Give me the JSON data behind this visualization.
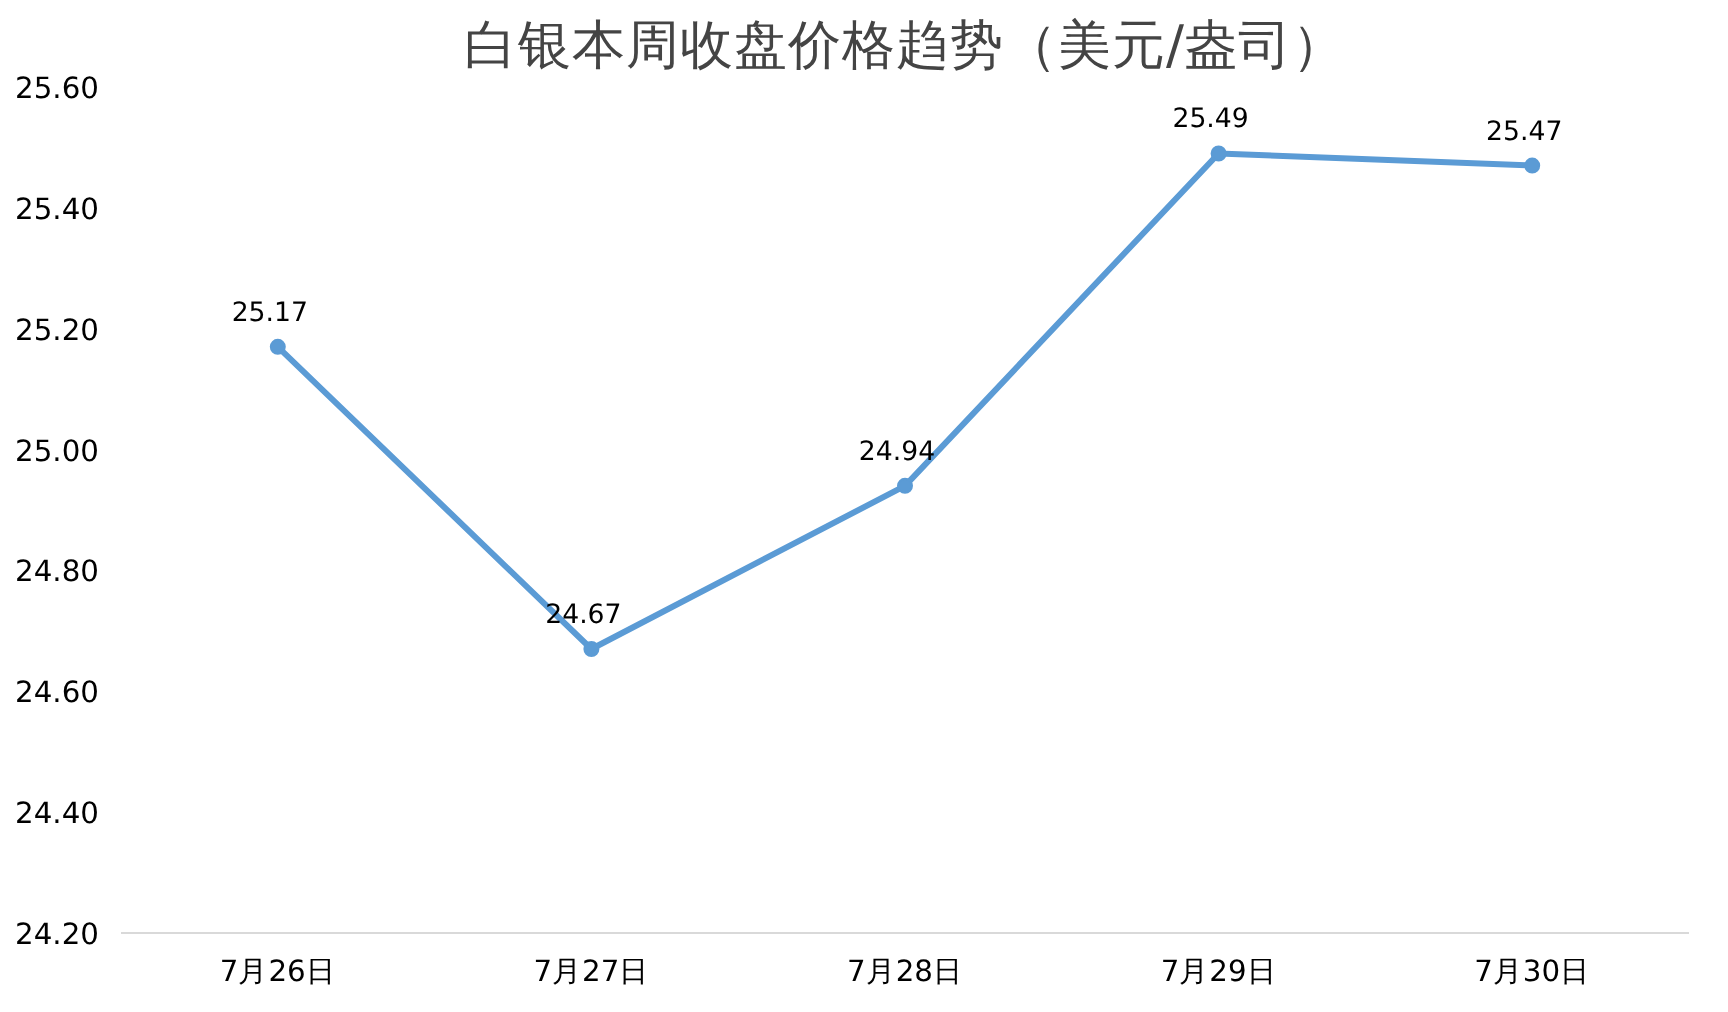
{
  "chart_data": {
    "type": "line",
    "title": "白银本周收盘价格趋势（美元/盎司）",
    "categories": [
      "7月26日",
      "7月27日",
      "7月28日",
      "7月29日",
      "7月30日"
    ],
    "series": [
      {
        "color": "#5b9bd5",
        "values": [
          25.17,
          24.67,
          24.94,
          25.49,
          25.47
        ]
      }
    ],
    "ylim": [
      24.2,
      25.6
    ],
    "yticks": [
      {
        "value": 24.2,
        "label": "24.20"
      },
      {
        "value": 24.4,
        "label": "24.40"
      },
      {
        "value": 24.6,
        "label": "24.60"
      },
      {
        "value": 24.8,
        "label": "24.80"
      },
      {
        "value": 25.0,
        "label": "25.00"
      },
      {
        "value": 25.2,
        "label": "25.20"
      },
      {
        "value": 25.4,
        "label": "25.40"
      },
      {
        "value": 25.6,
        "label": "25.60"
      }
    ],
    "data_labels": true,
    "grid": false,
    "marker": "circle",
    "line_style": "solid"
  }
}
